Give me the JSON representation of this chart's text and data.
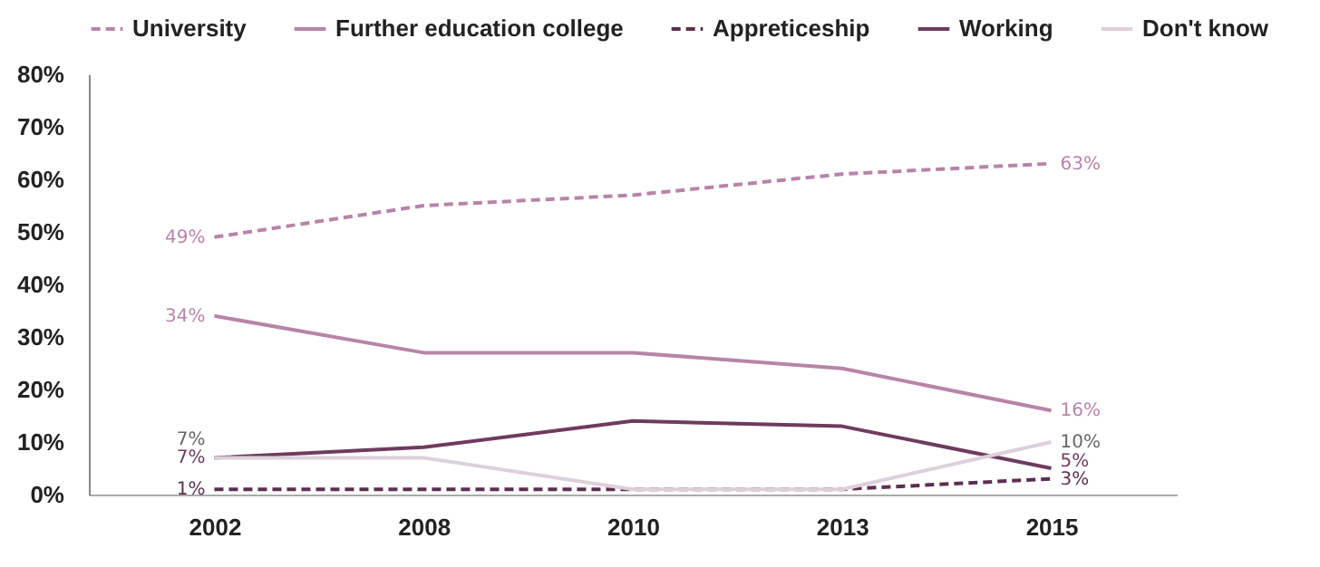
{
  "chart_data": {
    "type": "line",
    "categories": [
      "2002",
      "2008",
      "2010",
      "2013",
      "2015"
    ],
    "ylim": [
      0,
      80
    ],
    "yticks": [
      {
        "value": 0,
        "label": "0%"
      },
      {
        "value": 10,
        "label": "10%"
      },
      {
        "value": 20,
        "label": "20%"
      },
      {
        "value": 30,
        "label": "30%"
      },
      {
        "value": 40,
        "label": "40%"
      },
      {
        "value": 50,
        "label": "50%"
      },
      {
        "value": 60,
        "label": "60%"
      },
      {
        "value": 70,
        "label": "70%"
      },
      {
        "value": 80,
        "label": "80%"
      }
    ],
    "grid": false,
    "legend": "top",
    "marker": "none",
    "series": [
      {
        "name": "University",
        "color": "#b784a7",
        "line_style": "dashed",
        "values": [
          49,
          55,
          57,
          61,
          63
        ],
        "value_labels": [
          "49%",
          null,
          null,
          null,
          "63%"
        ]
      },
      {
        "name": "Further education college",
        "color": "#b784a7",
        "line_style": "solid",
        "values": [
          34,
          27,
          27,
          24,
          16
        ],
        "value_labels": [
          "34%",
          null,
          null,
          null,
          "16%"
        ]
      },
      {
        "name": "Appreticeship",
        "color": "#5c2e4f",
        "line_style": "dashed",
        "values": [
          1,
          1,
          1,
          1,
          3
        ],
        "value_labels": [
          "1%",
          null,
          null,
          null,
          "3%"
        ]
      },
      {
        "name": "Working",
        "color": "#6e3b5e",
        "line_style": "solid",
        "values": [
          7,
          9,
          14,
          13,
          5
        ],
        "value_labels": [
          "7%",
          null,
          null,
          null,
          "5%"
        ]
      },
      {
        "name": "Don't know",
        "color": "#ddd0da",
        "line_style": "solid",
        "values": [
          7,
          7,
          1,
          1,
          10
        ],
        "value_labels": [
          "7%",
          null,
          null,
          null,
          "10%"
        ]
      }
    ]
  }
}
